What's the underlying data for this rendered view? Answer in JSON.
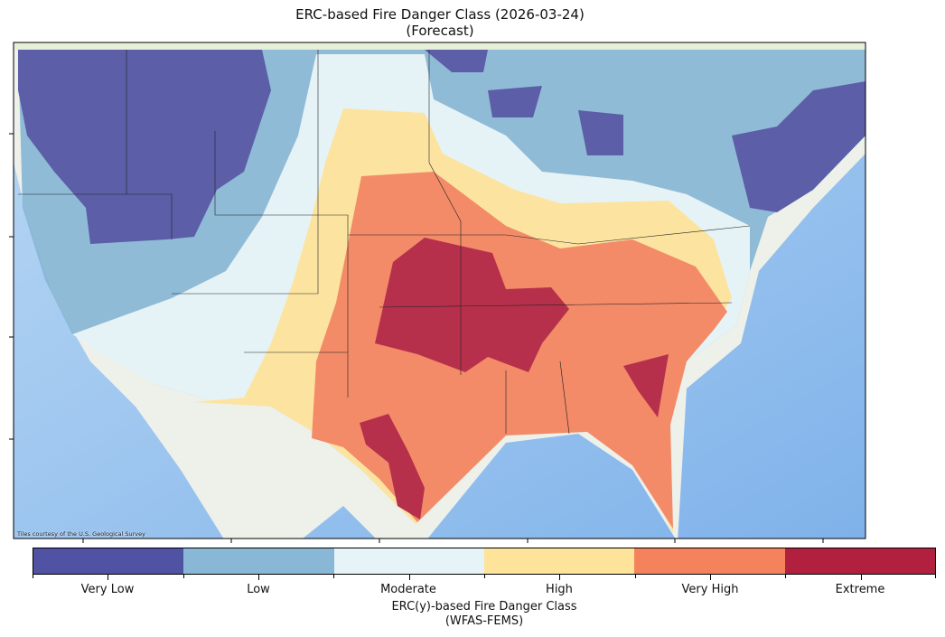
{
  "title": {
    "line1": "ERC-based Fire Danger Class (2026-03-24)",
    "line2": "(Forecast)"
  },
  "attribution": "Tiles courtesy of the U.S. Geological Survey",
  "colorbar": {
    "label_line1": "ERC(y)-based Fire Danger Class",
    "label_line2": "(WFAS-FEMS)",
    "classes": [
      {
        "label": "Very Low",
        "color": "#5052a3"
      },
      {
        "label": "Low",
        "color": "#89b7d6"
      },
      {
        "label": "Moderate",
        "color": "#e6f4f8"
      },
      {
        "label": "High",
        "color": "#fee39a"
      },
      {
        "label": "Very High",
        "color": "#f4835d"
      },
      {
        "label": "Extreme",
        "color": "#b2203f"
      }
    ]
  }
}
